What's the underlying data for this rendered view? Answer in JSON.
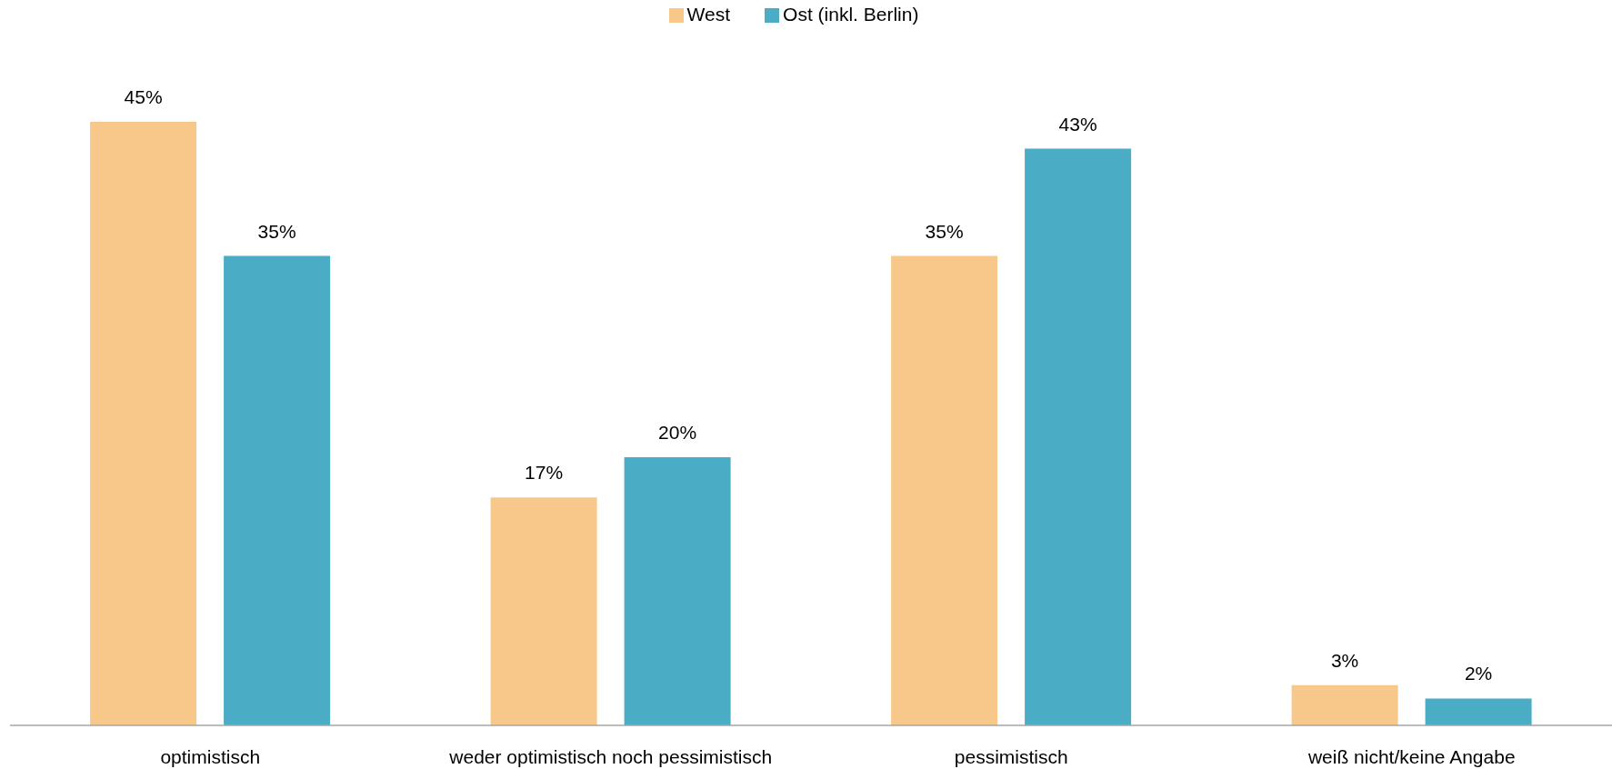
{
  "chart_data": {
    "type": "bar",
    "categories": [
      "optimistisch",
      "weder optimistisch noch pessimistisch",
      "pessimistisch",
      "weiß nicht/keine Angabe"
    ],
    "series": [
      {
        "name": "West",
        "color": "#f8c78a",
        "values": [
          45,
          17,
          35,
          3
        ],
        "value_labels": [
          "45%",
          "17%",
          "35%",
          "3%"
        ]
      },
      {
        "name": "Ost (inkl. Berlin)",
        "color": "#4bacc6",
        "values": [
          35,
          20,
          43,
          2
        ],
        "value_labels": [
          "35%",
          "20%",
          "43%",
          "2%"
        ]
      }
    ],
    "legend": "top",
    "tick_labels": "x"
  }
}
